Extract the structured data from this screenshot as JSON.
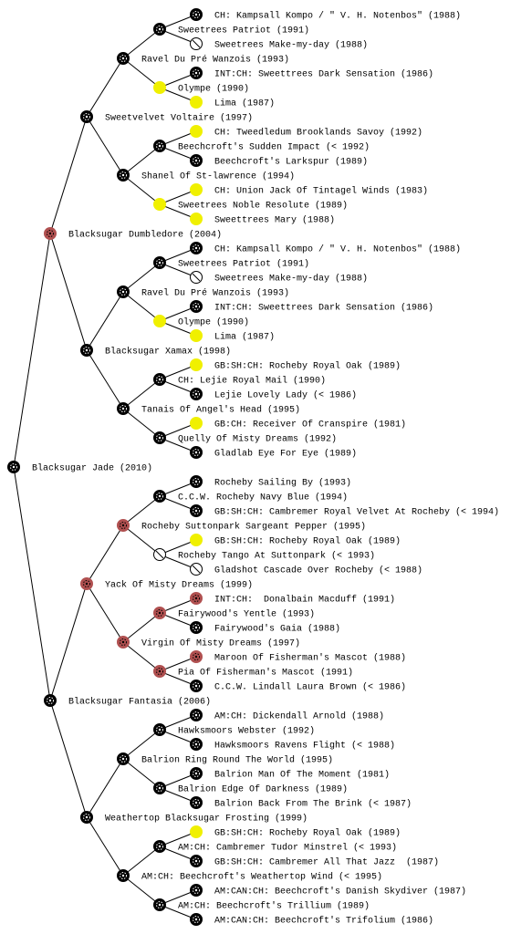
{
  "nodes": [
    {
      "label": "Blacksugar Jade (2010)",
      "color": "#000000"
    },
    {
      "label": "Blacksugar Dumbledore (2004)",
      "color": "#b05050"
    },
    {
      "label": "Blacksugar Fantasia (2006)",
      "color": "#000000"
    },
    {
      "label": "Sweetvelvet Voltaire (1997)",
      "color": "#000000"
    },
    {
      "label": "Blacksugar Xamax (1998)",
      "color": "#000000"
    },
    {
      "label": "Yack Of Misty Dreams (1999)",
      "color": "#b05050"
    },
    {
      "label": "Weathertop Blacksugar Frosting (1999)",
      "color": "#000000"
    },
    {
      "label": "Ravel Du Pré Wanzois (1993)",
      "color": "#000000"
    },
    {
      "label": "Shanel Of St-lawrence (1994)",
      "color": "#000000"
    },
    {
      "label": "Ravel Du Pré Wanzois (1993)",
      "color": "#000000"
    },
    {
      "label": "Tanais Of Angel's Head (1995)",
      "color": "#000000"
    },
    {
      "label": "Rocheby Suttonpark Sargeant Pepper (1995)",
      "color": "#b05050"
    },
    {
      "label": "Virgin Of Misty Dreams (1997)",
      "color": "#b05050"
    },
    {
      "label": "Balrion Ring Round The World (1995)",
      "color": "#000000"
    },
    {
      "label": "AM:CH: Beechcroft's Weathertop Wind (< 1995)",
      "color": "#000000"
    },
    {
      "label": "Sweetrees Patriot (1991)",
      "color": "#000000"
    },
    {
      "label": "Olympe (1990)",
      "color": "#f0f000"
    },
    {
      "label": "Beechcroft's Sudden Impact (< 1992)",
      "color": "#000000"
    },
    {
      "label": "Sweetrees Noble Resolute (1989)",
      "color": "#f0f000"
    },
    {
      "label": "Sweetrees Patriot (1991)",
      "color": "#000000"
    },
    {
      "label": "Olympe (1990)",
      "color": "#f0f000"
    },
    {
      "label": "CH: Lejie Royal Mail (1990)",
      "color": "#000000"
    },
    {
      "label": "Quelly Of Misty Dreams (1992)",
      "color": "#000000"
    },
    {
      "label": "C.C.W. Rocheby Navy Blue (1994)",
      "color": "#000000"
    },
    {
      "label": "Rocheby Tango At Suttonpark (< 1993)",
      "color": "#ffffff"
    },
    {
      "label": "Fairywood's Yentle (1993)",
      "color": "#b05050"
    },
    {
      "label": "Pia Of Fisherman's Mascot (1991)",
      "color": "#b05050"
    },
    {
      "label": "Hawksmoors Webster (1992)",
      "color": "#000000"
    },
    {
      "label": "Balrion Edge Of Darkness (1989)",
      "color": "#000000"
    },
    {
      "label": "AM:CH: Cambremer Tudor Minstrel (< 1993)",
      "color": "#000000"
    },
    {
      "label": "AM:CH: Beechcroft's Trillium (1989)",
      "color": "#000000"
    },
    {
      "label": "CH: Kampsall Kompo / \" V. H. Notenbos\" (1988)",
      "color": "#000000"
    },
    {
      "label": "Sweetrees Make-my-day (1988)",
      "color": "#ffffff"
    },
    {
      "label": "INT:CH: Sweettrees Dark Sensation (1986)",
      "color": "#000000"
    },
    {
      "label": "Lima (1987)",
      "color": "#f0f000"
    },
    {
      "label": "CH: Tweedledum Brooklands Savoy (1992)",
      "color": "#f0f000"
    },
    {
      "label": "Beechcroft's Larkspur (1989)",
      "color": "#000000"
    },
    {
      "label": "CH: Union Jack Of Tintagel Winds (1983)",
      "color": "#f0f000"
    },
    {
      "label": "Sweettrees Mary (1988)",
      "color": "#f0f000"
    },
    {
      "label": "CH: Kampsall Kompo / \" V. H. Notenbos\" (1988)",
      "color": "#000000"
    },
    {
      "label": "Sweetrees Make-my-day (1988)",
      "color": "#ffffff"
    },
    {
      "label": "INT:CH: Sweettrees Dark Sensation (1986)",
      "color": "#000000"
    },
    {
      "label": "Lima (1987)",
      "color": "#f0f000"
    },
    {
      "label": "GB:SH:CH: Rocheby Royal Oak (1989)",
      "color": "#f0f000"
    },
    {
      "label": "Lejie Lovely Lady (< 1986)",
      "color": "#000000"
    },
    {
      "label": "GB:CH: Receiver Of Cranspire (1981)",
      "color": "#f0f000"
    },
    {
      "label": "Gladlab Eye For Eye (1989)",
      "color": "#000000"
    },
    {
      "label": "Rocheby Sailing By (1993)",
      "color": "#000000"
    },
    {
      "label": "GB:SH:CH: Cambremer Royal Velvet At Rocheby (< 1994)",
      "color": "#000000"
    },
    {
      "label": "GB:SH:CH: Rocheby Royal Oak (1989)",
      "color": "#f0f000"
    },
    {
      "label": "Gladshot Cascade Over Rocheby (< 1988)",
      "color": "#ffffff"
    },
    {
      "label": "INT:CH:  Donalbain Macduff (1991)",
      "color": "#b05050"
    },
    {
      "label": "Fairywood's Gaia (1988)",
      "color": "#000000"
    },
    {
      "label": "Maroon Of Fisherman's Mascot (1988)",
      "color": "#b05050"
    },
    {
      "label": "C.C.W. Lindall Laura Brown (< 1986)",
      "color": "#000000"
    },
    {
      "label": "AM:CH: Dickendall Arnold (1988)",
      "color": "#000000"
    },
    {
      "label": "Hawksmoors Ravens Flight (< 1988)",
      "color": "#000000"
    },
    {
      "label": "Balrion Man Of The Moment (1981)",
      "color": "#000000"
    },
    {
      "label": "Balrion Back From The Brink (< 1987)",
      "color": "#000000"
    },
    {
      "label": "GB:SH:CH: Rocheby Royal Oak (1989)",
      "color": "#f0f000"
    },
    {
      "label": "GB:SH:CH: Cambremer All That Jazz  (1987)",
      "color": "#000000"
    },
    {
      "label": "AM:CAN:CH: Beechcroft's Danish Skydiver (1987)",
      "color": "#000000"
    },
    {
      "label": "AM:CAN:CH: Beechcroft's Trifolium (1986)",
      "color": "#000000"
    }
  ]
}
